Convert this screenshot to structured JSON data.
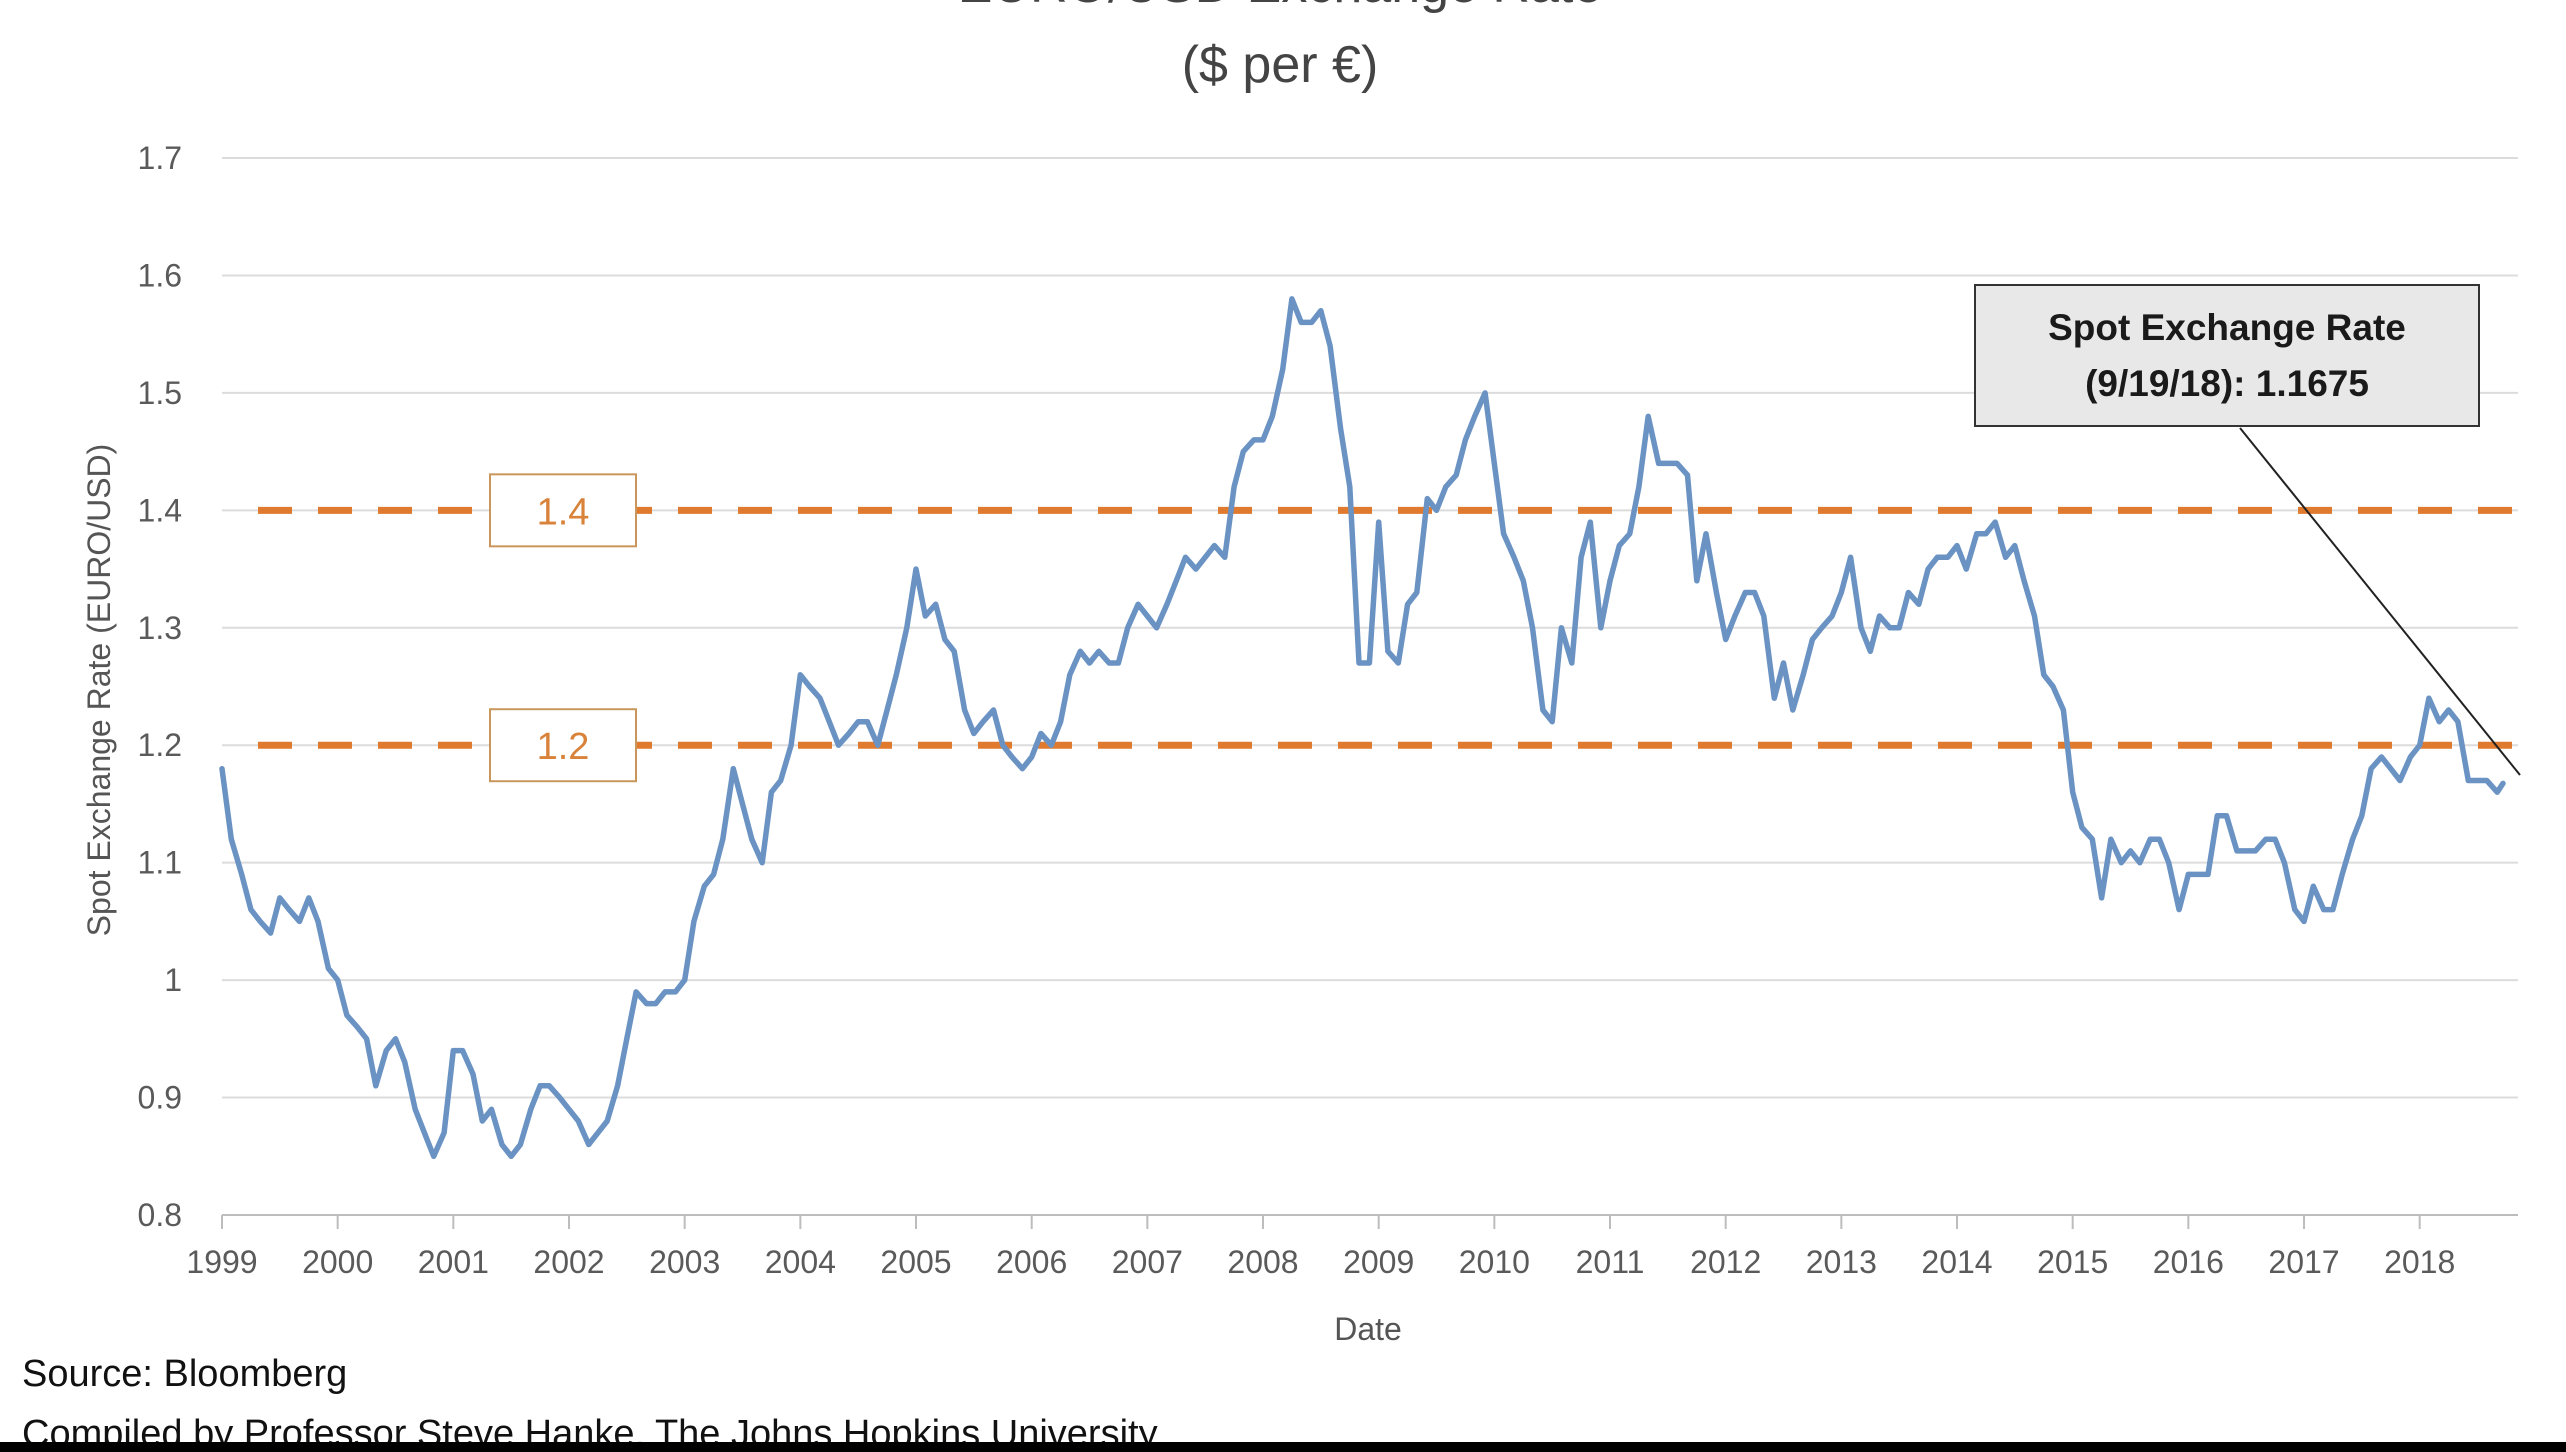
{
  "chart_data": {
    "type": "line",
    "title": "EURO/USD Exchange Rate",
    "subtitle": "($ per €)",
    "xlabel": "Date",
    "ylabel": "Spot Exchange Rate (EURO/USD)",
    "xlim": [
      1999.0,
      2018.85
    ],
    "ylim": [
      0.8,
      1.7
    ],
    "y_ticks": [
      "0.8",
      "0.9",
      "1",
      "1.1",
      "1.2",
      "1.3",
      "1.4",
      "1.5",
      "1.6",
      "1.7"
    ],
    "x_ticks": [
      "1999",
      "2000",
      "2001",
      "2002",
      "2003",
      "2004",
      "2005",
      "2006",
      "2007",
      "2008",
      "2009",
      "2010",
      "2011",
      "2012",
      "2013",
      "2014",
      "2015",
      "2016",
      "2017",
      "2018"
    ],
    "grid": true,
    "series": [
      {
        "name": "",
        "color": "#6a93c4",
        "points": [
          [
            1999.0,
            1.18
          ],
          [
            1999.08,
            1.12
          ],
          [
            1999.17,
            1.09
          ],
          [
            1999.25,
            1.06
          ],
          [
            1999.33,
            1.05
          ],
          [
            1999.42,
            1.04
          ],
          [
            1999.5,
            1.07
          ],
          [
            1999.58,
            1.06
          ],
          [
            1999.67,
            1.05
          ],
          [
            1999.75,
            1.07
          ],
          [
            1999.83,
            1.05
          ],
          [
            1999.92,
            1.01
          ],
          [
            2000.0,
            1.0
          ],
          [
            2000.08,
            0.97
          ],
          [
            2000.17,
            0.96
          ],
          [
            2000.25,
            0.95
          ],
          [
            2000.33,
            0.91
          ],
          [
            2000.42,
            0.94
          ],
          [
            2000.5,
            0.95
          ],
          [
            2000.58,
            0.93
          ],
          [
            2000.67,
            0.89
          ],
          [
            2000.75,
            0.87
          ],
          [
            2000.83,
            0.85
          ],
          [
            2000.92,
            0.87
          ],
          [
            2001.0,
            0.94
          ],
          [
            2001.08,
            0.94
          ],
          [
            2001.17,
            0.92
          ],
          [
            2001.25,
            0.88
          ],
          [
            2001.33,
            0.89
          ],
          [
            2001.42,
            0.86
          ],
          [
            2001.5,
            0.85
          ],
          [
            2001.58,
            0.86
          ],
          [
            2001.67,
            0.89
          ],
          [
            2001.75,
            0.91
          ],
          [
            2001.83,
            0.91
          ],
          [
            2001.92,
            0.9
          ],
          [
            2002.0,
            0.89
          ],
          [
            2002.08,
            0.88
          ],
          [
            2002.17,
            0.86
          ],
          [
            2002.25,
            0.87
          ],
          [
            2002.33,
            0.88
          ],
          [
            2002.42,
            0.91
          ],
          [
            2002.5,
            0.95
          ],
          [
            2002.58,
            0.99
          ],
          [
            2002.67,
            0.98
          ],
          [
            2002.75,
            0.98
          ],
          [
            2002.83,
            0.99
          ],
          [
            2002.92,
            0.99
          ],
          [
            2003.0,
            1.0
          ],
          [
            2003.08,
            1.05
          ],
          [
            2003.17,
            1.08
          ],
          [
            2003.25,
            1.09
          ],
          [
            2003.33,
            1.12
          ],
          [
            2003.42,
            1.18
          ],
          [
            2003.5,
            1.15
          ],
          [
            2003.58,
            1.12
          ],
          [
            2003.67,
            1.1
          ],
          [
            2003.75,
            1.16
          ],
          [
            2003.83,
            1.17
          ],
          [
            2003.92,
            1.2
          ],
          [
            2004.0,
            1.26
          ],
          [
            2004.08,
            1.25
          ],
          [
            2004.17,
            1.24
          ],
          [
            2004.25,
            1.22
          ],
          [
            2004.33,
            1.2
          ],
          [
            2004.42,
            1.21
          ],
          [
            2004.5,
            1.22
          ],
          [
            2004.58,
            1.22
          ],
          [
            2004.67,
            1.2
          ],
          [
            2004.75,
            1.23
          ],
          [
            2004.83,
            1.26
          ],
          [
            2004.92,
            1.3
          ],
          [
            2005.0,
            1.35
          ],
          [
            2005.08,
            1.31
          ],
          [
            2005.17,
            1.32
          ],
          [
            2005.25,
            1.29
          ],
          [
            2005.33,
            1.28
          ],
          [
            2005.42,
            1.23
          ],
          [
            2005.5,
            1.21
          ],
          [
            2005.58,
            1.22
          ],
          [
            2005.67,
            1.23
          ],
          [
            2005.75,
            1.2
          ],
          [
            2005.83,
            1.19
          ],
          [
            2005.92,
            1.18
          ],
          [
            2006.0,
            1.19
          ],
          [
            2006.08,
            1.21
          ],
          [
            2006.17,
            1.2
          ],
          [
            2006.25,
            1.22
          ],
          [
            2006.33,
            1.26
          ],
          [
            2006.42,
            1.28
          ],
          [
            2006.5,
            1.27
          ],
          [
            2006.58,
            1.28
          ],
          [
            2006.67,
            1.27
          ],
          [
            2006.75,
            1.27
          ],
          [
            2006.83,
            1.3
          ],
          [
            2006.92,
            1.32
          ],
          [
            2007.0,
            1.31
          ],
          [
            2007.08,
            1.3
          ],
          [
            2007.17,
            1.32
          ],
          [
            2007.25,
            1.34
          ],
          [
            2007.33,
            1.36
          ],
          [
            2007.42,
            1.35
          ],
          [
            2007.5,
            1.36
          ],
          [
            2007.58,
            1.37
          ],
          [
            2007.67,
            1.36
          ],
          [
            2007.75,
            1.42
          ],
          [
            2007.83,
            1.45
          ],
          [
            2007.92,
            1.46
          ],
          [
            2008.0,
            1.46
          ],
          [
            2008.08,
            1.48
          ],
          [
            2008.17,
            1.52
          ],
          [
            2008.25,
            1.58
          ],
          [
            2008.33,
            1.56
          ],
          [
            2008.42,
            1.56
          ],
          [
            2008.5,
            1.57
          ],
          [
            2008.58,
            1.54
          ],
          [
            2008.67,
            1.47
          ],
          [
            2008.75,
            1.42
          ],
          [
            2008.83,
            1.27
          ],
          [
            2008.92,
            1.27
          ],
          [
            2009.0,
            1.39
          ],
          [
            2009.08,
            1.28
          ],
          [
            2009.17,
            1.27
          ],
          [
            2009.25,
            1.32
          ],
          [
            2009.33,
            1.33
          ],
          [
            2009.42,
            1.41
          ],
          [
            2009.5,
            1.4
          ],
          [
            2009.58,
            1.42
          ],
          [
            2009.67,
            1.43
          ],
          [
            2009.75,
            1.46
          ],
          [
            2009.83,
            1.48
          ],
          [
            2009.92,
            1.5
          ],
          [
            2010.0,
            1.44
          ],
          [
            2010.08,
            1.38
          ],
          [
            2010.17,
            1.36
          ],
          [
            2010.25,
            1.34
          ],
          [
            2010.33,
            1.3
          ],
          [
            2010.42,
            1.23
          ],
          [
            2010.5,
            1.22
          ],
          [
            2010.58,
            1.3
          ],
          [
            2010.67,
            1.27
          ],
          [
            2010.75,
            1.36
          ],
          [
            2010.83,
            1.39
          ],
          [
            2010.92,
            1.3
          ],
          [
            2011.0,
            1.34
          ],
          [
            2011.08,
            1.37
          ],
          [
            2011.17,
            1.38
          ],
          [
            2011.25,
            1.42
          ],
          [
            2011.33,
            1.48
          ],
          [
            2011.42,
            1.44
          ],
          [
            2011.5,
            1.44
          ],
          [
            2011.58,
            1.44
          ],
          [
            2011.67,
            1.43
          ],
          [
            2011.75,
            1.34
          ],
          [
            2011.83,
            1.38
          ],
          [
            2011.92,
            1.33
          ],
          [
            2012.0,
            1.29
          ],
          [
            2012.08,
            1.31
          ],
          [
            2012.17,
            1.33
          ],
          [
            2012.25,
            1.33
          ],
          [
            2012.33,
            1.31
          ],
          [
            2012.42,
            1.24
          ],
          [
            2012.5,
            1.27
          ],
          [
            2012.58,
            1.23
          ],
          [
            2012.67,
            1.26
          ],
          [
            2012.75,
            1.29
          ],
          [
            2012.83,
            1.3
          ],
          [
            2012.92,
            1.31
          ],
          [
            2013.0,
            1.33
          ],
          [
            2013.08,
            1.36
          ],
          [
            2013.17,
            1.3
          ],
          [
            2013.25,
            1.28
          ],
          [
            2013.33,
            1.31
          ],
          [
            2013.42,
            1.3
          ],
          [
            2013.5,
            1.3
          ],
          [
            2013.58,
            1.33
          ],
          [
            2013.67,
            1.32
          ],
          [
            2013.75,
            1.35
          ],
          [
            2013.83,
            1.36
          ],
          [
            2013.92,
            1.36
          ],
          [
            2014.0,
            1.37
          ],
          [
            2014.08,
            1.35
          ],
          [
            2014.17,
            1.38
          ],
          [
            2014.25,
            1.38
          ],
          [
            2014.33,
            1.39
          ],
          [
            2014.42,
            1.36
          ],
          [
            2014.5,
            1.37
          ],
          [
            2014.58,
            1.34
          ],
          [
            2014.67,
            1.31
          ],
          [
            2014.75,
            1.26
          ],
          [
            2014.83,
            1.25
          ],
          [
            2014.92,
            1.23
          ],
          [
            2015.0,
            1.16
          ],
          [
            2015.08,
            1.13
          ],
          [
            2015.17,
            1.12
          ],
          [
            2015.25,
            1.07
          ],
          [
            2015.33,
            1.12
          ],
          [
            2015.42,
            1.1
          ],
          [
            2015.5,
            1.11
          ],
          [
            2015.58,
            1.1
          ],
          [
            2015.67,
            1.12
          ],
          [
            2015.75,
            1.12
          ],
          [
            2015.83,
            1.1
          ],
          [
            2015.92,
            1.06
          ],
          [
            2016.0,
            1.09
          ],
          [
            2016.08,
            1.09
          ],
          [
            2016.17,
            1.09
          ],
          [
            2016.25,
            1.14
          ],
          [
            2016.33,
            1.14
          ],
          [
            2016.42,
            1.11
          ],
          [
            2016.5,
            1.11
          ],
          [
            2016.58,
            1.11
          ],
          [
            2016.67,
            1.12
          ],
          [
            2016.75,
            1.12
          ],
          [
            2016.83,
            1.1
          ],
          [
            2016.92,
            1.06
          ],
          [
            2017.0,
            1.05
          ],
          [
            2017.08,
            1.08
          ],
          [
            2017.17,
            1.06
          ],
          [
            2017.25,
            1.06
          ],
          [
            2017.33,
            1.09
          ],
          [
            2017.42,
            1.12
          ],
          [
            2017.5,
            1.14
          ],
          [
            2017.58,
            1.18
          ],
          [
            2017.67,
            1.19
          ],
          [
            2017.75,
            1.18
          ],
          [
            2017.83,
            1.17
          ],
          [
            2017.92,
            1.19
          ],
          [
            2018.0,
            1.2
          ],
          [
            2018.08,
            1.24
          ],
          [
            2018.17,
            1.22
          ],
          [
            2018.25,
            1.23
          ],
          [
            2018.33,
            1.22
          ],
          [
            2018.42,
            1.17
          ],
          [
            2018.5,
            1.17
          ],
          [
            2018.58,
            1.17
          ],
          [
            2018.67,
            1.16
          ],
          [
            2018.72,
            1.1675
          ]
        ]
      }
    ],
    "reference_lines": [
      {
        "value": 1.4,
        "label": "1.4",
        "color": "#e07a2f"
      },
      {
        "value": 1.2,
        "label": "1.2",
        "color": "#e07a2f"
      }
    ],
    "annotation": {
      "line1": "Spot Exchange Rate",
      "line2": "(9/19/18): 1.1675",
      "target": [
        2018.8,
        1.17
      ]
    }
  },
  "footer": {
    "source": "Source: Bloomberg",
    "compiled": "Compiled by Professor Steve Hanke, The Johns Hopkins University"
  }
}
